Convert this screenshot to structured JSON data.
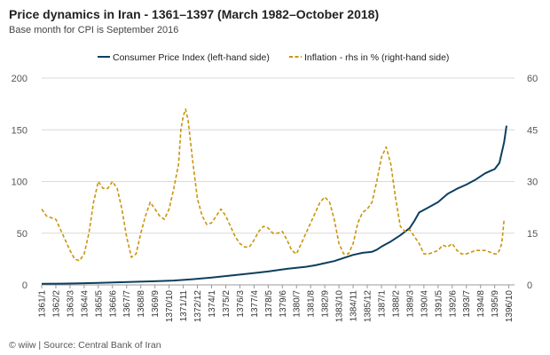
{
  "title": "Price dynamics in Iran - 1361–1397 (March 1982–October 2018)",
  "subtitle": "Base month for CPI is September 2016",
  "footer": "© wiiw | Source: Central Bank of Iran",
  "colors": {
    "cpi": "#0d3f5f",
    "inflation": "#c9950c",
    "grid": "#d9d9d9",
    "axis": "#999999"
  },
  "chart_data": {
    "type": "line",
    "title": "Price dynamics in Iran - 1361–1397 (March 1982–October 2018)",
    "subtitle": "Base month for CPI is September 2016",
    "legend_position": "top",
    "grid": true,
    "y_left": {
      "min": 0,
      "max": 200,
      "ticks": [
        0,
        50,
        100,
        150,
        200
      ]
    },
    "y_right": {
      "min": 0,
      "max": 60,
      "ticks": [
        0,
        15,
        30,
        45,
        60
      ]
    },
    "x_tick_labels": [
      "1361/1",
      "1362/2",
      "1363/3",
      "1364/4",
      "1365/5",
      "1366/6",
      "1367/7",
      "1368/8",
      "1369/9",
      "1370/10",
      "1371/11",
      "1372/12",
      "1374/1",
      "1375/2",
      "1376/3",
      "1377/4",
      "1378/5",
      "1379/6",
      "1380/7",
      "1381/8",
      "1382/9",
      "1383/10",
      "1384/11",
      "1385/12",
      "1387/1",
      "1388/2",
      "1389/3",
      "1390/4",
      "1391/5",
      "1392/6",
      "1393/7",
      "1394/8",
      "1395/9",
      "1396/10"
    ],
    "series": [
      {
        "name": "Consumer Price Index (left-hand side)",
        "axis": "left",
        "style": "solid",
        "points": [
          [
            0,
            1
          ],
          [
            4,
            1.2
          ],
          [
            8,
            1.5
          ],
          [
            12,
            2
          ],
          [
            16,
            2.5
          ],
          [
            20,
            3
          ],
          [
            24,
            3.5
          ],
          [
            28,
            4.2
          ],
          [
            32,
            5.5
          ],
          [
            36,
            7
          ],
          [
            40,
            9
          ],
          [
            44,
            11
          ],
          [
            48,
            13
          ],
          [
            52,
            15.5
          ],
          [
            54,
            16.5
          ],
          [
            56,
            17.5
          ],
          [
            58,
            19
          ],
          [
            60,
            21
          ],
          [
            62,
            23
          ],
          [
            64,
            26
          ],
          [
            66,
            29
          ],
          [
            68,
            31
          ],
          [
            70,
            32
          ],
          [
            71,
            34
          ],
          [
            72,
            37
          ],
          [
            74,
            42
          ],
          [
            76,
            48
          ],
          [
            78,
            55
          ],
          [
            79,
            62
          ],
          [
            80,
            70
          ],
          [
            82,
            75
          ],
          [
            84,
            80
          ],
          [
            86,
            88
          ],
          [
            88,
            93
          ],
          [
            90,
            97
          ],
          [
            92,
            102
          ],
          [
            94,
            108
          ],
          [
            95,
            110
          ],
          [
            96,
            112
          ],
          [
            97,
            118
          ],
          [
            98,
            138
          ],
          [
            98.5,
            154
          ]
        ]
      },
      {
        "name": "Inflation - rhs in % (right-hand side)",
        "axis": "right",
        "style": "dashed",
        "points": [
          [
            0,
            22
          ],
          [
            1,
            20
          ],
          [
            2,
            19.5
          ],
          [
            3,
            19
          ],
          [
            4,
            16
          ],
          [
            5,
            13
          ],
          [
            6,
            10
          ],
          [
            7,
            7.5
          ],
          [
            8,
            7
          ],
          [
            9,
            9
          ],
          [
            10,
            15
          ],
          [
            11,
            24
          ],
          [
            12,
            30
          ],
          [
            13,
            28
          ],
          [
            14,
            28
          ],
          [
            15,
            30
          ],
          [
            16,
            28
          ],
          [
            17,
            22
          ],
          [
            18,
            14
          ],
          [
            19,
            8
          ],
          [
            20,
            9
          ],
          [
            21,
            15
          ],
          [
            22,
            20
          ],
          [
            23,
            24
          ],
          [
            24,
            22
          ],
          [
            25,
            20
          ],
          [
            26,
            19
          ],
          [
            27,
            22
          ],
          [
            28,
            28
          ],
          [
            29,
            35
          ],
          [
            29.5,
            45
          ],
          [
            30,
            49
          ],
          [
            30.5,
            51
          ],
          [
            31,
            48
          ],
          [
            32,
            36
          ],
          [
            33,
            25
          ],
          [
            34,
            20
          ],
          [
            35,
            17.5
          ],
          [
            36,
            18
          ],
          [
            37,
            20
          ],
          [
            38,
            22
          ],
          [
            39,
            20
          ],
          [
            40,
            17
          ],
          [
            41,
            14
          ],
          [
            42,
            12
          ],
          [
            43,
            11
          ],
          [
            44,
            11
          ],
          [
            45,
            13
          ],
          [
            46,
            15.5
          ],
          [
            47,
            17
          ],
          [
            48,
            16.5
          ],
          [
            49,
            15
          ],
          [
            50,
            15
          ],
          [
            51,
            15.5
          ],
          [
            52,
            13
          ],
          [
            53,
            10
          ],
          [
            54,
            9
          ],
          [
            55,
            12
          ],
          [
            56,
            15
          ],
          [
            57,
            18
          ],
          [
            58,
            21
          ],
          [
            59,
            24
          ],
          [
            60,
            25.5
          ],
          [
            61,
            24
          ],
          [
            62,
            19
          ],
          [
            63,
            12
          ],
          [
            64,
            9
          ],
          [
            65,
            9
          ],
          [
            66,
            12
          ],
          [
            67,
            18
          ],
          [
            68,
            21
          ],
          [
            69,
            22
          ],
          [
            70,
            24
          ],
          [
            71,
            30
          ],
          [
            72,
            37
          ],
          [
            73,
            40
          ],
          [
            74,
            35
          ],
          [
            75,
            25
          ],
          [
            76,
            17
          ],
          [
            77,
            15.5
          ],
          [
            78,
            16
          ],
          [
            79,
            14
          ],
          [
            80,
            12
          ],
          [
            81,
            9
          ],
          [
            82,
            9
          ],
          [
            83,
            9.5
          ],
          [
            84,
            10
          ],
          [
            85,
            11.5
          ],
          [
            86,
            11
          ],
          [
            87,
            12
          ],
          [
            88,
            10
          ],
          [
            89,
            9
          ],
          [
            90,
            9
          ],
          [
            91,
            9.5
          ],
          [
            92,
            10
          ],
          [
            93,
            10
          ],
          [
            94,
            10
          ],
          [
            95,
            9.5
          ],
          [
            96,
            9
          ],
          [
            96.5,
            9
          ],
          [
            97,
            10
          ],
          [
            97.5,
            12
          ],
          [
            98,
            19
          ]
        ]
      }
    ]
  }
}
